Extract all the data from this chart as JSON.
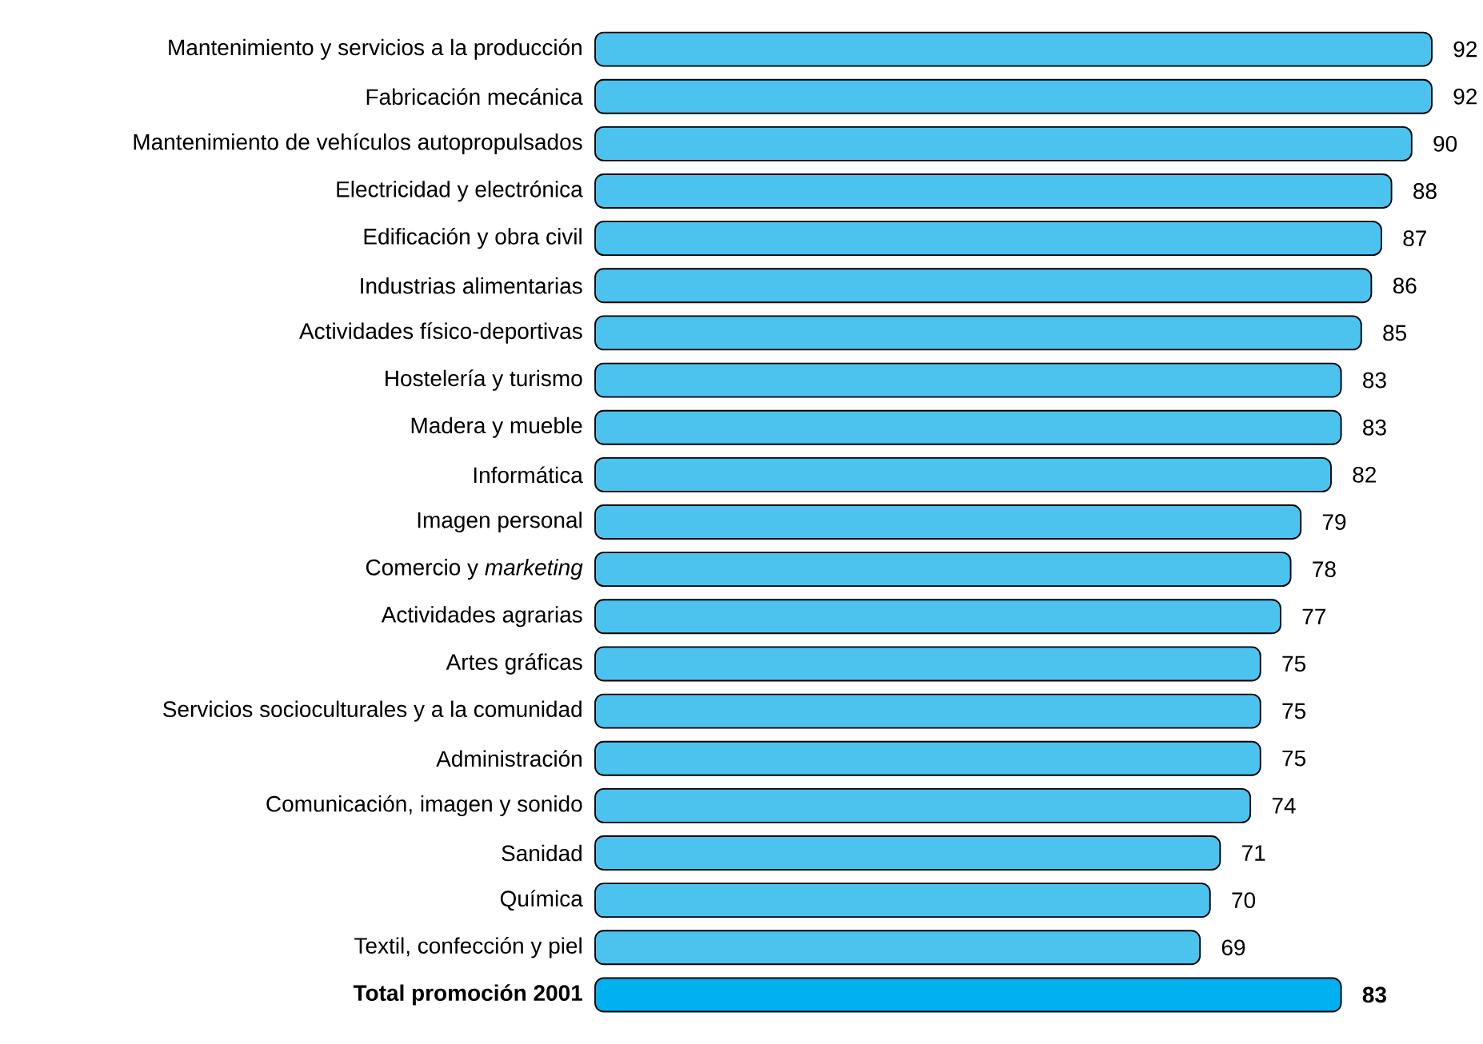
{
  "chart_data": {
    "type": "bar",
    "orientation": "horizontal",
    "data_labels": true,
    "xlim": [
      9,
      92
    ],
    "categories": [
      "Mantenimiento y servicios a la producción",
      "Fabricación mecánica",
      "Mantenimiento de vehículos autopropulsados",
      "Electricidad y electrónica",
      "Edificación y obra civil",
      "Industrias alimentarias",
      "Actividades físico-deportivas",
      "Hostelería y turismo",
      "Madera y mueble",
      "Informática",
      "Imagen personal",
      "Comercio y *marketing*",
      "Actividades agrarias",
      "Artes gráficas",
      "Servicios socioculturales y a la comunidad",
      "Administración",
      "Comunicación, imagen y sonido",
      "Sanidad",
      "Química",
      "Textil, confección y piel",
      "**Total promoción 2001**"
    ],
    "values": [
      92,
      92,
      90,
      88,
      87,
      86,
      85,
      83,
      83,
      82,
      79,
      78,
      77,
      75,
      75,
      75,
      74,
      71,
      70,
      69,
      83
    ],
    "colors": [
      "#4cc3ee",
      "#4cc3ee",
      "#4cc3ee",
      "#4cc3ee",
      "#4cc3ee",
      "#4cc3ee",
      "#4cc3ee",
      "#4cc3ee",
      "#4cc3ee",
      "#4cc3ee",
      "#4cc3ee",
      "#4cc3ee",
      "#4cc3ee",
      "#4cc3ee",
      "#4cc3ee",
      "#4cc3ee",
      "#4cc3ee",
      "#4cc3ee",
      "#4cc3ee",
      "#4cc3ee",
      "#00b0ef"
    ]
  }
}
